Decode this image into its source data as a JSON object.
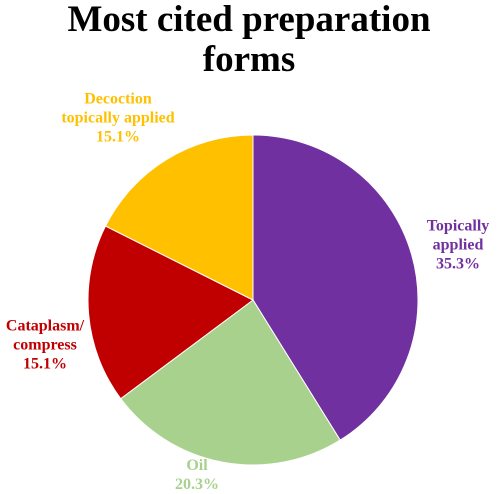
{
  "chart_data": {
    "type": "pie",
    "title": "Most cited preparation\nforms",
    "categories": [
      "Topically\napplied",
      "Oil",
      "Cataplasm/\ncompress",
      "Decoction\ntopically applied"
    ],
    "values": [
      35.3,
      20.3,
      15.1,
      15.1
    ],
    "value_labels": [
      "35.3%",
      "20.3%",
      "15.1%",
      "15.1%"
    ],
    "colors": [
      "#7030a0",
      "#a9d18e",
      "#c00000",
      "#ffc000"
    ]
  }
}
